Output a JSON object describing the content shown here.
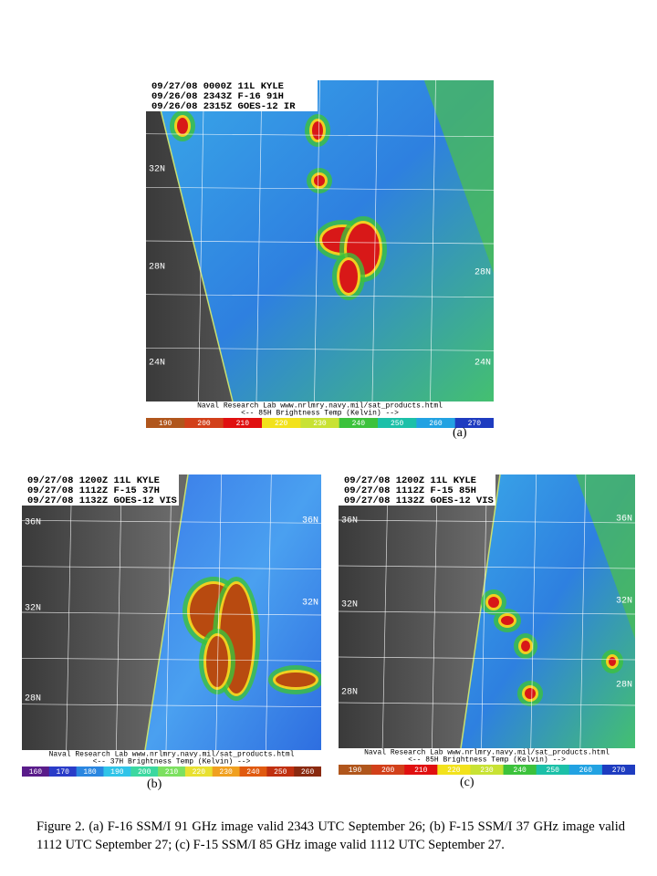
{
  "panels": [
    {
      "header": [
        "09/27/08 0000Z 11L KYLE",
        "09/26/08 2343Z F-16 91H",
        "09/26/08 2315Z GOES-12 IR"
      ],
      "lat_labels": [
        "32N",
        "28N",
        "24N",
        "28N",
        "24N"
      ],
      "footer": [
        "Naval Research Lab  www.nrlmry.navy.mil/sat_products.html",
        "<--   85H Brightness Temp (Kelvin)   -->"
      ],
      "colorbar_ticks": [
        190,
        200,
        210,
        220,
        230,
        240,
        250,
        260,
        270
      ],
      "label": "(a)"
    },
    {
      "header": [
        "09/27/08 1200Z 11L KYLE",
        "09/27/08 1112Z F-15 37H",
        "09/27/08 1132Z GOES-12 VIS"
      ],
      "lat_labels": [
        "36N",
        "32N",
        "28N",
        "36N",
        "32N"
      ],
      "footer": [
        "Naval Research Lab  www.nrlmry.navy.mil/sat_products.html",
        "<--   37H Brightness Temp (Kelvin)   -->"
      ],
      "colorbar_ticks": [
        160,
        170,
        180,
        190,
        200,
        210,
        220,
        230,
        240,
        250,
        260
      ],
      "label": "(b)"
    },
    {
      "header": [
        "09/27/08 1200Z 11L KYLE",
        "09/27/08 1112Z F-15 85H",
        "09/27/08 1132Z GOES-12 VIS"
      ],
      "lat_labels": [
        "36N",
        "32N",
        "28N",
        "36N",
        "32N",
        "28N"
      ],
      "footer": [
        "Naval Research Lab  www.nrlmry.navy.mil/sat_products.html",
        "<--   85H Brightness Temp (Kelvin)   -->"
      ],
      "colorbar_ticks": [
        190,
        200,
        210,
        220,
        230,
        240,
        250,
        260,
        270
      ],
      "label": "(c)"
    }
  ],
  "caption": "Figure 2.  (a) F-16 SSM/I 91 GHz image valid 2343 UTC September 26; (b) F-15 SSM/I 37 GHz image valid 1112 UTC September 27; (c) F-15 SSM/I 85 GHz image valid 1112 UTC September 27."
}
